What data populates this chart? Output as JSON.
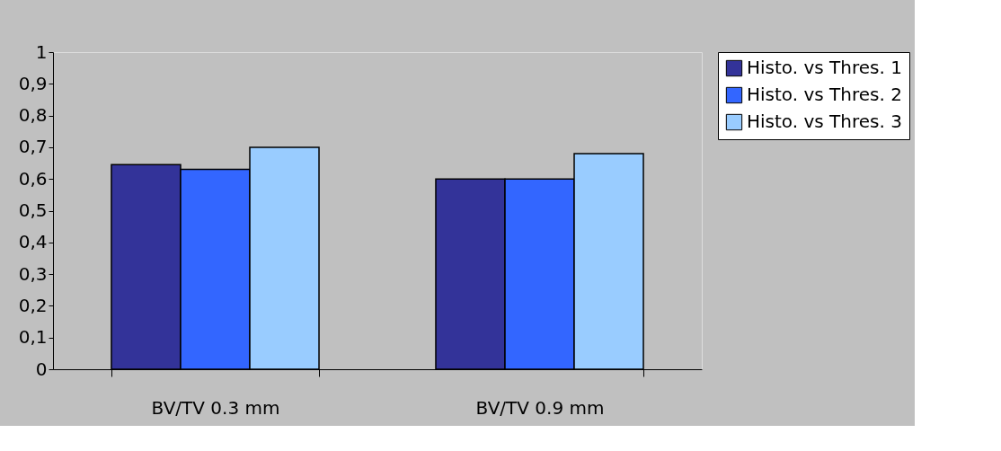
{
  "chart_data": {
    "type": "bar",
    "categories": [
      "BV/TV 0.3 mm",
      "BV/TV 0.9 mm"
    ],
    "series": [
      {
        "name": "Histo. vs Thres. 1",
        "color": "#333399",
        "values": [
          0.645,
          0.6
        ]
      },
      {
        "name": "Histo. vs Thres. 2",
        "color": "#3366ff",
        "values": [
          0.63,
          0.6
        ]
      },
      {
        "name": "Histo. vs Thres. 3",
        "color": "#99ccff",
        "values": [
          0.7,
          0.68
        ]
      }
    ],
    "ylim": [
      0,
      1
    ],
    "yticks": [
      {
        "value": 0,
        "label": "0"
      },
      {
        "value": 0.1,
        "label": "0,1"
      },
      {
        "value": 0.2,
        "label": "0,2"
      },
      {
        "value": 0.3,
        "label": "0,3"
      },
      {
        "value": 0.4,
        "label": "0,4"
      },
      {
        "value": 0.5,
        "label": "0,5"
      },
      {
        "value": 0.6,
        "label": "0,6"
      },
      {
        "value": 0.7,
        "label": "0,7"
      },
      {
        "value": 0.8,
        "label": "0,8"
      },
      {
        "value": 0.9,
        "label": "0,9"
      },
      {
        "value": 1,
        "label": "1"
      }
    ],
    "grid": false,
    "legend": "right"
  }
}
